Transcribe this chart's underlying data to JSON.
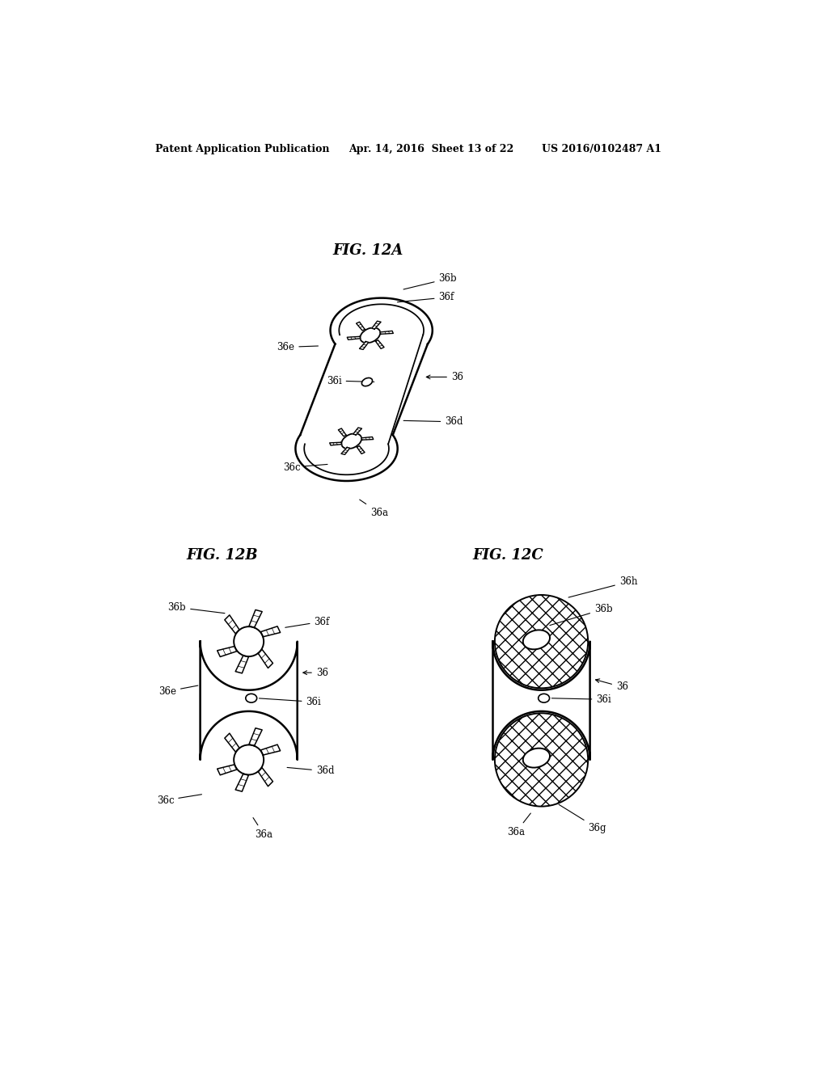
{
  "bg_color": "#ffffff",
  "header_left": "Patent Application Publication",
  "header_mid": "Apr. 14, 2016  Sheet 13 of 22",
  "header_right": "US 2016/0102487 A1",
  "fig_12a_title": "FIG. 12A",
  "fig_12b_title": "FIG. 12B",
  "fig_12c_title": "FIG. 12C",
  "line_color": "#000000",
  "label_color": "#000000"
}
